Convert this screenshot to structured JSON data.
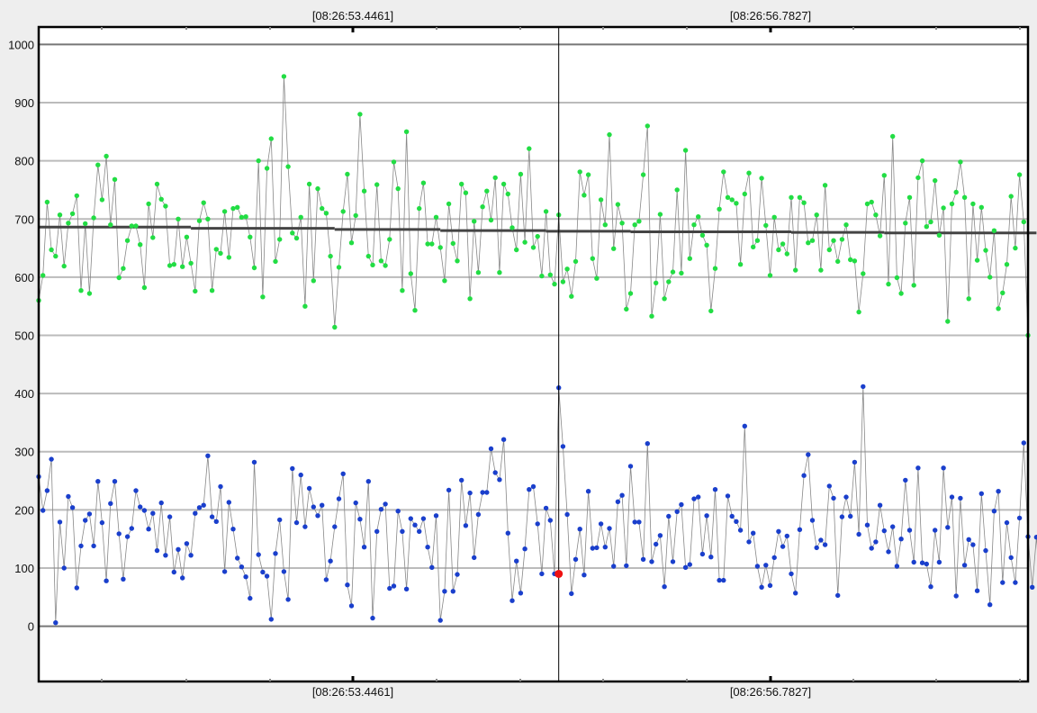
{
  "chart_data": {
    "type": "scatter",
    "title": "",
    "xlabel": "",
    "ylabel": "",
    "x_tick_labels": [
      "[08:26:53.4461]",
      "[08:26:56.7827]"
    ],
    "y_ticks": [
      0,
      100,
      200,
      300,
      400,
      500,
      600,
      700,
      800,
      900,
      1000
    ],
    "ylim": [
      -95,
      1030
    ],
    "grid": true,
    "legend": "none",
    "colors": {
      "green_series": "#22dd44",
      "blue_series": "#1a3fcc",
      "connector_line": "#888888",
      "average_line": "#444444",
      "marker_highlight": "#ee1111",
      "cursor_line": "#000000",
      "grid_major": "#777777",
      "grid_minor": "#bbbbbb"
    },
    "cursor": {
      "index": 123,
      "highlight_value": 90
    },
    "series": [
      {
        "values": [
          560,
          603,
          729,
          647,
          636,
          707,
          619,
          693,
          709,
          740,
          577,
          692,
          572,
          702,
          793,
          733,
          808,
          690,
          768,
          599,
          615,
          663,
          688,
          688,
          656,
          582,
          726,
          668,
          760,
          734,
          722,
          620,
          622,
          700,
          618,
          669,
          624,
          576,
          697,
          728,
          700,
          577,
          648,
          641,
          713,
          634,
          718,
          720,
          703,
          704,
          669,
          616,
          800,
          566,
          787,
          838,
          627,
          665,
          945,
          790,
          676,
          667,
          703,
          550,
          760,
          594,
          752,
          718,
          710,
          636,
          514,
          617,
          713,
          777,
          659,
          706,
          880,
          748,
          636,
          621,
          759,
          628,
          620,
          665,
          798,
          752,
          577,
          850,
          606,
          543,
          718,
          762,
          657,
          657,
          703,
          651,
          594,
          726,
          658,
          628,
          760,
          745,
          563,
          696,
          608,
          721,
          748,
          698,
          771,
          608,
          760,
          743,
          685,
          647,
          777,
          660,
          821,
          651,
          670,
          602,
          713,
          604,
          588,
          707,
          592,
          614,
          567,
          627,
          781,
          741,
          776,
          632,
          598,
          733,
          690,
          845,
          649,
          725,
          693,
          545,
          572,
          690,
          696,
          776,
          860,
          533,
          590,
          708,
          563,
          592,
          609,
          750,
          607,
          818,
          632,
          690,
          704,
          672,
          655,
          542,
          615,
          717,
          781,
          737,
          733,
          727,
          622,
          743,
          779,
          652,
          663,
          770,
          689,
          603,
          703,
          647,
          657,
          640,
          737,
          612,
          737,
          728,
          659,
          663,
          707,
          612,
          758,
          647,
          663,
          627,
          665,
          690,
          630,
          628,
          540,
          606,
          726,
          729,
          707,
          671,
          775,
          588,
          842,
          599,
          572,
          693,
          737,
          586,
          771,
          800,
          687,
          695,
          766,
          672,
          719,
          524,
          726,
          746,
          798,
          737,
          563,
          726,
          629,
          720,
          646,
          600,
          680,
          546,
          573,
          622,
          739,
          650,
          776,
          695,
          500
        ]
      },
      {
        "values": [
          257,
          199,
          233,
          287,
          6,
          179,
          100,
          223,
          204,
          66,
          138,
          182,
          193,
          138,
          249,
          178,
          78,
          211,
          249,
          159,
          81,
          154,
          168,
          233,
          205,
          199,
          167,
          194,
          130,
          212,
          122,
          188,
          93,
          132,
          83,
          142,
          122,
          194,
          204,
          208,
          293,
          188,
          180,
          240,
          94,
          213,
          167,
          117,
          102,
          85,
          48,
          282,
          123,
          93,
          86,
          12,
          125,
          183,
          94,
          46,
          271,
          178,
          260,
          171,
          237,
          205,
          190,
          208,
          80,
          112,
          171,
          219,
          262,
          71,
          35,
          212,
          184,
          136,
          249,
          14,
          163,
          201,
          210,
          65,
          69,
          198,
          163,
          64,
          185,
          174,
          163,
          185,
          136,
          101,
          190,
          10,
          60,
          234,
          60,
          89,
          251,
          173,
          229,
          118,
          192,
          230,
          230,
          305,
          264,
          252,
          321,
          160,
          44,
          112,
          57,
          133,
          235,
          240,
          176,
          90,
          203,
          182,
          90,
          410,
          309,
          192,
          56,
          115,
          167,
          88,
          232,
          134,
          135,
          176,
          136,
          168,
          103,
          214,
          225,
          104,
          275,
          179,
          179,
          115,
          314,
          111,
          141,
          156,
          68,
          189,
          111,
          197,
          209,
          101,
          106,
          219,
          222,
          124,
          190,
          119,
          235,
          79,
          79,
          224,
          189,
          180,
          165,
          344,
          145,
          160,
          103,
          67,
          105,
          70,
          118,
          163,
          137,
          155,
          90,
          57,
          166,
          259,
          295,
          182,
          135,
          148,
          140,
          241,
          220,
          53,
          188,
          222,
          189,
          282,
          158,
          412,
          174,
          134,
          145,
          208,
          164,
          128,
          171,
          103,
          150,
          251,
          165,
          110,
          272,
          109,
          107,
          68,
          165,
          110,
          272,
          170,
          222,
          52,
          220,
          105,
          149,
          140,
          61,
          228,
          130,
          37,
          198,
          232,
          75,
          178,
          118,
          75,
          186,
          315,
          154,
          67,
          153,
          52,
          147,
          95
        ]
      }
    ],
    "average_line": [
      {
        "from_index": 0,
        "to_index": 36,
        "value": 686
      },
      {
        "from_index": 36,
        "to_index": 70,
        "value": 684
      },
      {
        "from_index": 70,
        "to_index": 95,
        "value": 682
      },
      {
        "from_index": 95,
        "to_index": 120,
        "value": 680
      },
      {
        "from_index": 120,
        "to_index": 140,
        "value": 679
      },
      {
        "from_index": 140,
        "to_index": 178,
        "value": 678
      },
      {
        "from_index": 178,
        "to_index": 200,
        "value": 677
      },
      {
        "from_index": 200,
        "to_index": 236,
        "value": 676
      }
    ]
  }
}
